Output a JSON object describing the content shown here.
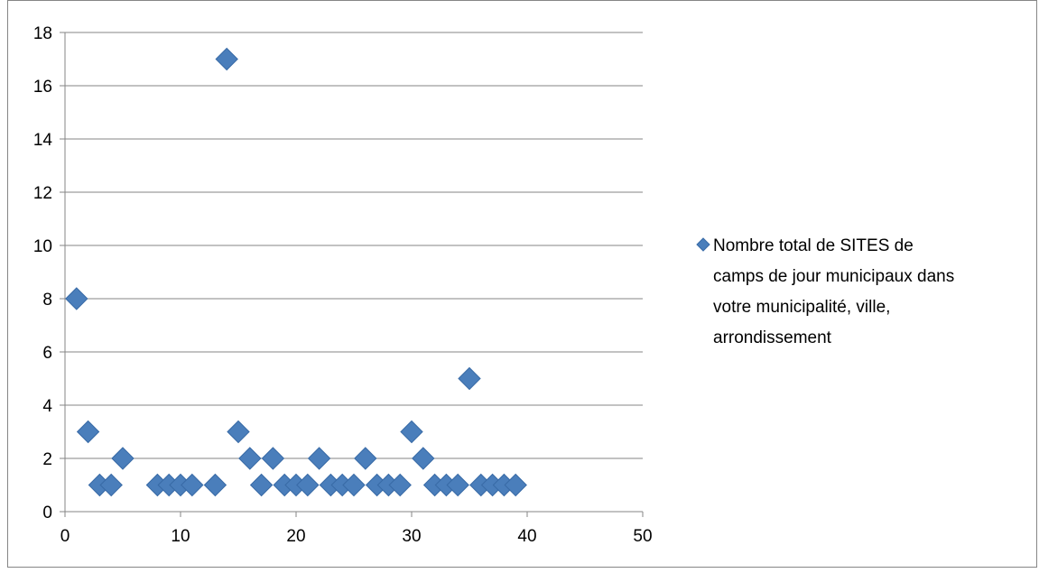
{
  "chart_data": {
    "type": "scatter",
    "title": "",
    "xlabel": "",
    "ylabel": "",
    "xlim": [
      0,
      50
    ],
    "ylim": [
      0,
      18
    ],
    "x_ticks": [
      "0",
      "10",
      "20",
      "30",
      "40",
      "50"
    ],
    "y_ticks": [
      "0",
      "2",
      "4",
      "6",
      "8",
      "10",
      "12",
      "14",
      "16",
      "18"
    ],
    "grid": "horizontal",
    "legend_position": "right",
    "marker": "diamond",
    "colors": {
      "marker_fill": "#4a7ebb",
      "marker_stroke": "#386aa6",
      "grid": "#868686",
      "axis": "#868686",
      "border": "#868686"
    },
    "legend_lines": [
      "Nombre total de SITES de",
      "camps de jour municipaux dans",
      "votre municipalité, ville,",
      "arrondissement"
    ],
    "series": [
      {
        "points": [
          {
            "x": 1,
            "y": 8
          },
          {
            "x": 2,
            "y": 3
          },
          {
            "x": 3,
            "y": 1
          },
          {
            "x": 4,
            "y": 1
          },
          {
            "x": 5,
            "y": 2
          },
          {
            "x": 8,
            "y": 1
          },
          {
            "x": 9,
            "y": 1
          },
          {
            "x": 10,
            "y": 1
          },
          {
            "x": 11,
            "y": 1
          },
          {
            "x": 13,
            "y": 1
          },
          {
            "x": 14,
            "y": 17
          },
          {
            "x": 15,
            "y": 3
          },
          {
            "x": 16,
            "y": 2
          },
          {
            "x": 17,
            "y": 1
          },
          {
            "x": 18,
            "y": 2
          },
          {
            "x": 19,
            "y": 1
          },
          {
            "x": 20,
            "y": 1
          },
          {
            "x": 21,
            "y": 1
          },
          {
            "x": 22,
            "y": 2
          },
          {
            "x": 23,
            "y": 1
          },
          {
            "x": 24,
            "y": 1
          },
          {
            "x": 25,
            "y": 1
          },
          {
            "x": 26,
            "y": 2
          },
          {
            "x": 27,
            "y": 1
          },
          {
            "x": 28,
            "y": 1
          },
          {
            "x": 29,
            "y": 1
          },
          {
            "x": 30,
            "y": 3
          },
          {
            "x": 31,
            "y": 2
          },
          {
            "x": 32,
            "y": 1
          },
          {
            "x": 33,
            "y": 1
          },
          {
            "x": 34,
            "y": 1
          },
          {
            "x": 35,
            "y": 5
          },
          {
            "x": 36,
            "y": 1
          },
          {
            "x": 37,
            "y": 1
          },
          {
            "x": 38,
            "y": 1
          },
          {
            "x": 39,
            "y": 1
          }
        ]
      }
    ]
  }
}
